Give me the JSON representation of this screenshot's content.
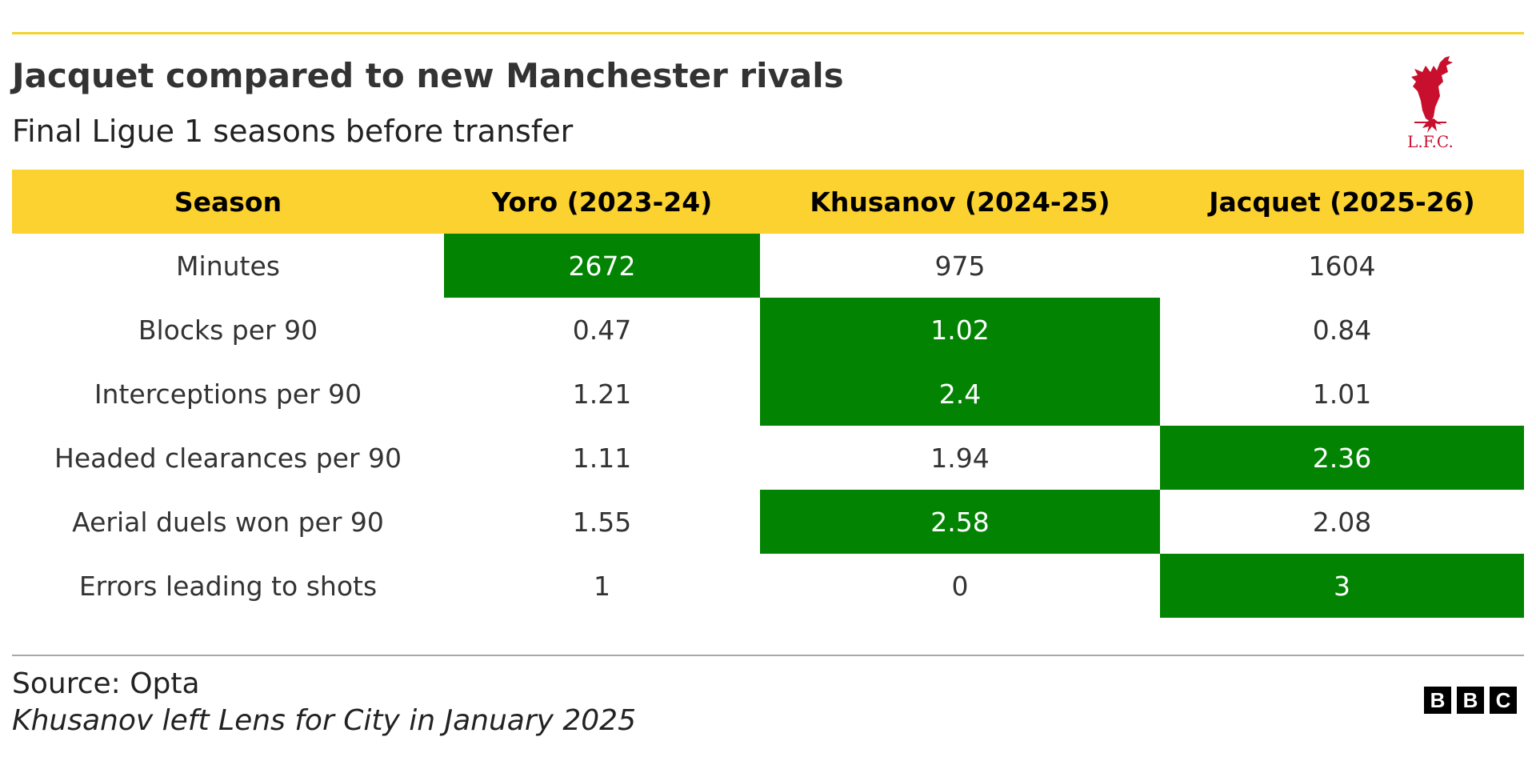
{
  "header": {
    "title": "Jacquet compared to new Manchester rivals",
    "subtitle": "Final Ligue 1 seasons before transfer"
  },
  "logo": {
    "icon": "liverpool-liverbird-icon",
    "text": "L.F.C.",
    "color": "#c8102e"
  },
  "colors": {
    "accent": "#f5d22e",
    "header_bg": "#fbd22f",
    "highlight": "#028402"
  },
  "chart_data": {
    "type": "table",
    "columns": [
      "Season",
      "Yoro (2023-24)",
      "Khusanov (2024-25)",
      "Jacquet (2025-26)"
    ],
    "rows": [
      {
        "label": "Minutes",
        "values": [
          "2672",
          "975",
          "1604"
        ],
        "highlight_index": 0
      },
      {
        "label": "Blocks per 90",
        "values": [
          "0.47",
          "1.02",
          "0.84"
        ],
        "highlight_index": 1
      },
      {
        "label": "Interceptions per 90",
        "values": [
          "1.21",
          "2.4",
          "1.01"
        ],
        "highlight_index": 1
      },
      {
        "label": "Headed clearances per 90",
        "values": [
          "1.11",
          "1.94",
          "2.36"
        ],
        "highlight_index": 2
      },
      {
        "label": "Aerial duels won per 90",
        "values": [
          "1.55",
          "2.58",
          "2.08"
        ],
        "highlight_index": 1
      },
      {
        "label": "Errors leading to shots",
        "values": [
          "1",
          "0",
          "3"
        ],
        "highlight_index": 2
      }
    ]
  },
  "footer": {
    "source": "Source: Opta",
    "note": "Khusanov left Lens for City in January 2025",
    "brand_letters": [
      "B",
      "B",
      "C"
    ]
  }
}
